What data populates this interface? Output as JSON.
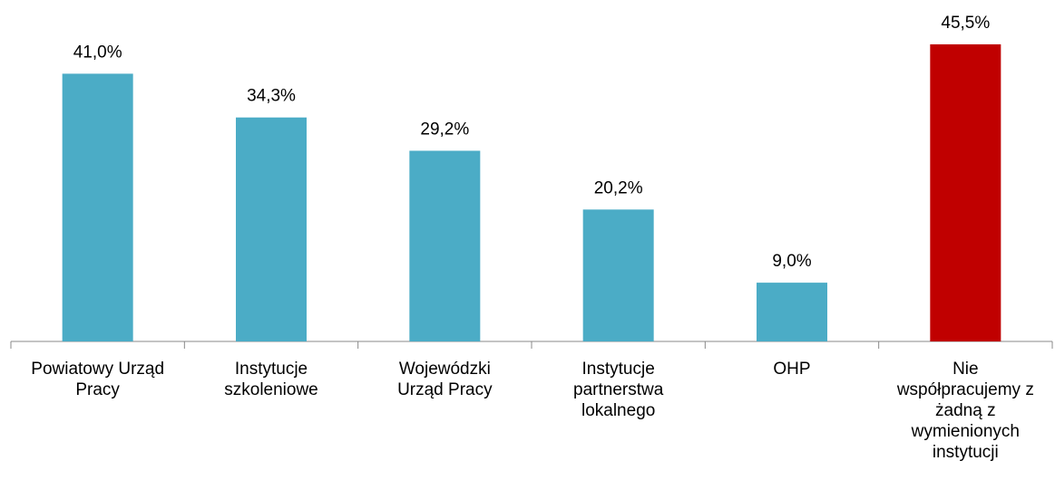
{
  "chart_data": {
    "type": "bar",
    "categories": [
      "Powiatowy Urząd\nPracy",
      "Instytucje\nszkoleniowe",
      "Wojewódzki\nUrząd Pracy",
      "Instytucje\npartnerstwa\nlokalnego",
      "OHP",
      "Nie\nwspółpracujemy z\nżadną z\nwymienionych\ninstytucji"
    ],
    "values": [
      41.0,
      34.3,
      29.2,
      20.2,
      9.0,
      45.5
    ],
    "value_labels": [
      "41,0%",
      "34,3%",
      "29,2%",
      "20,2%",
      "9,0%",
      "45,5%"
    ],
    "colors": [
      "#4bacc6",
      "#4bacc6",
      "#4bacc6",
      "#4bacc6",
      "#4bacc6",
      "#c00000"
    ]
  }
}
